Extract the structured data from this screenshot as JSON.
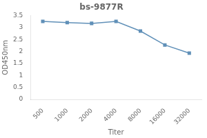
{
  "chart_data": {
    "type": "line",
    "title": "bs-9877R",
    "x_label": "Titer",
    "y_label": "OD450nm",
    "categories": [
      "500",
      "1000",
      "2000",
      "4000",
      "8000",
      "16000",
      "32000"
    ],
    "values": [
      3.25,
      3.2,
      3.17,
      3.25,
      2.85,
      2.27,
      1.93
    ],
    "color": "#6090b8",
    "marker": "square",
    "ylim": [
      0,
      3.5
    ],
    "yticks": [
      0,
      0.5,
      1,
      1.5,
      2,
      2.5,
      3,
      3.5
    ],
    "grid": false
  }
}
